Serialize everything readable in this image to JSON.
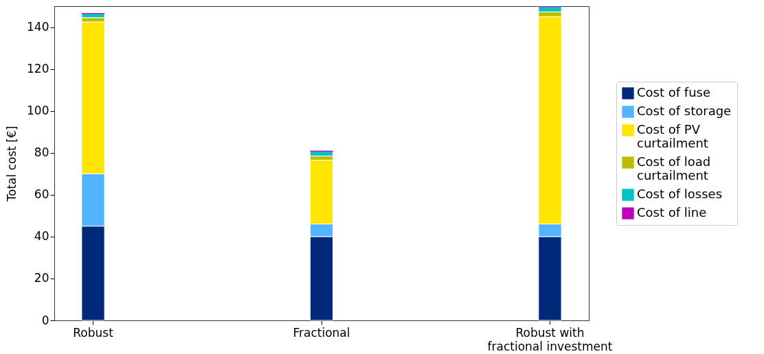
{
  "chart_data": {
    "type": "bar",
    "stacked": true,
    "ylabel": "Total cost [€]",
    "categories": [
      "Robust",
      "Fractional",
      "Robust with\nfractional investment"
    ],
    "ylim": [
      0,
      150
    ],
    "yticks": [
      0,
      20,
      40,
      60,
      80,
      100,
      120,
      140
    ],
    "grid": false,
    "legend": "right",
    "series": [
      {
        "name": "Cost of fuse",
        "color": "#00297a",
        "values": [
          45,
          40,
          40
        ]
      },
      {
        "name": "Cost of storage",
        "color": "#52b4ff",
        "values": [
          25,
          6,
          6
        ]
      },
      {
        "name": "Cost of PV\ncurtailment",
        "color": "#ffe500",
        "values": [
          72.5,
          30.5,
          99
        ]
      },
      {
        "name": "Cost of load\ncurtailment",
        "color": "#bcbd00",
        "values": [
          2,
          2,
          2.3
        ]
      },
      {
        "name": "Cost of losses",
        "color": "#00c2c2",
        "values": [
          2,
          2.3,
          2.5
        ]
      },
      {
        "name": "Cost of line",
        "color": "#c000c0",
        "values": [
          0,
          0,
          0
        ]
      }
    ]
  }
}
